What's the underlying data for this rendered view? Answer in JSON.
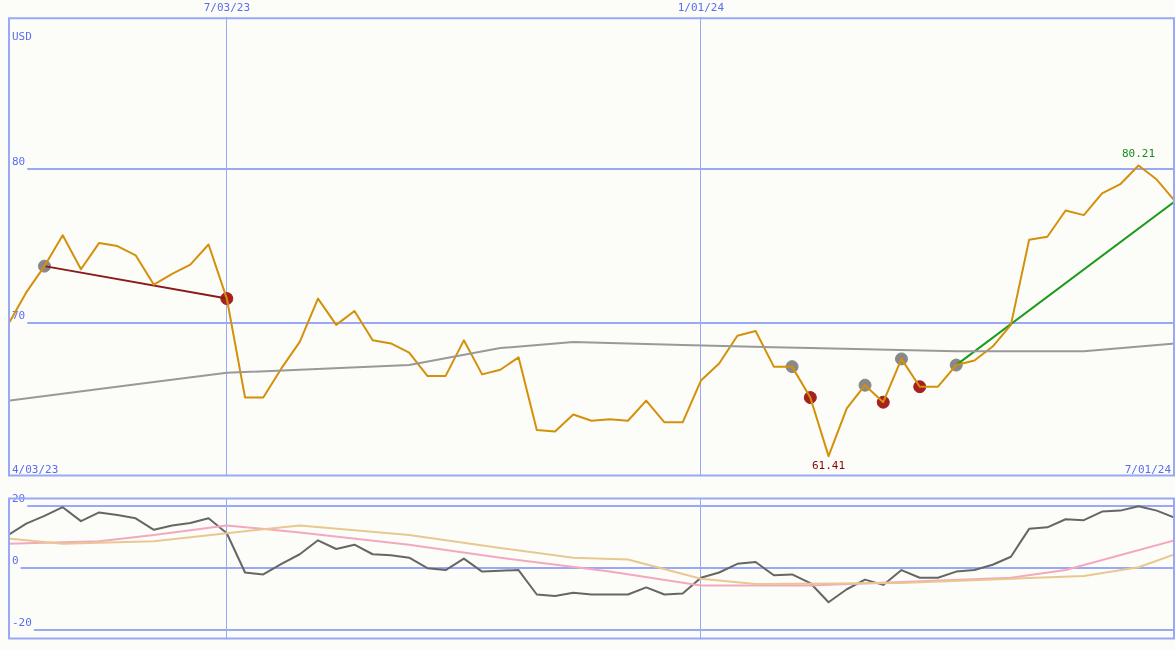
{
  "chart_data": [
    {
      "type": "line",
      "ylabel": "USD",
      "marker": "none",
      "grid": true,
      "x": [
        "2023-04-10",
        "2023-04-17",
        "2023-04-24",
        "2023-05-01",
        "2023-05-08",
        "2023-05-15",
        "2023-05-22",
        "2023-05-29",
        "2023-06-05",
        "2023-06-12",
        "2023-06-19",
        "2023-06-26",
        "2023-07-03",
        "2023-07-10",
        "2023-07-17",
        "2023-07-24",
        "2023-07-31",
        "2023-08-07",
        "2023-08-14",
        "2023-08-21",
        "2023-08-28",
        "2023-09-04",
        "2023-09-11",
        "2023-09-18",
        "2023-09-25",
        "2023-10-02",
        "2023-10-09",
        "2023-10-16",
        "2023-10-23",
        "2023-10-30",
        "2023-11-06",
        "2023-11-13",
        "2023-11-20",
        "2023-11-27",
        "2023-12-04",
        "2023-12-11",
        "2023-12-18",
        "2023-12-25",
        "2024-01-01",
        "2024-01-08",
        "2024-01-15",
        "2024-01-22",
        "2024-01-29",
        "2024-02-05",
        "2024-02-12",
        "2024-02-19",
        "2024-02-26",
        "2024-03-04",
        "2024-03-11",
        "2024-03-18",
        "2024-03-25",
        "2024-04-01",
        "2024-04-08",
        "2024-04-15",
        "2024-04-22",
        "2024-04-29",
        "2024-05-06",
        "2024-05-13",
        "2024-05-20",
        "2024-05-27",
        "2024-06-03",
        "2024-06-10",
        "2024-06-17",
        "2024-06-24",
        "2024-07-01"
      ],
      "xlim": [
        "2023-04-10",
        "2024-07-01"
      ],
      "xticks": [
        {
          "value": "2023-07-03",
          "label": "7/03/23"
        },
        {
          "value": "2024-01-01",
          "label": "1/01/24"
        }
      ],
      "ylim": [
        60.1,
        89.8
      ],
      "yticks": [
        70,
        80
      ],
      "series": [
        {
          "type": "line",
          "color": "#999999",
          "x": [
            "2023-04-10",
            "2023-06-05",
            "2023-07-03",
            "2023-09-11",
            "2023-10-16",
            "2023-11-13",
            "2023-12-25",
            "2024-02-12",
            "2024-04-08",
            "2024-05-27",
            "2024-07-01"
          ],
          "values": [
            65.0,
            66.2,
            66.8,
            67.3,
            68.4,
            68.8,
            68.6,
            68.4,
            68.2,
            68.2,
            68.7
          ]
        },
        {
          "type": "line",
          "color": "#d4900a",
          "values": [
            69.9,
            72.0,
            73.7,
            75.7,
            73.5,
            75.2,
            75.0,
            74.4,
            72.5,
            73.2,
            73.8,
            75.1,
            71.6,
            65.2,
            65.2,
            67.1,
            68.8,
            71.6,
            69.9,
            70.8,
            68.9,
            68.7,
            68.1,
            66.6,
            66.6,
            68.9,
            66.7,
            67.0,
            67.8,
            63.1,
            63.0,
            64.1,
            63.7,
            63.8,
            63.7,
            65.0,
            63.6,
            63.6,
            66.3,
            67.4,
            69.2,
            69.5,
            67.2,
            67.2,
            65.2,
            61.41,
            64.5,
            66.0,
            64.9,
            67.7,
            65.9,
            65.9,
            67.3,
            67.6,
            68.5,
            69.9,
            75.4,
            75.6,
            77.3,
            77.0,
            78.4,
            79.0,
            80.21,
            79.3,
            77.9
          ]
        },
        {
          "type": "line",
          "color": "#8b1a1a",
          "x": [
            "2023-04-24",
            "2023-07-03"
          ],
          "values": [
            73.7,
            71.6
          ]
        },
        {
          "type": "line",
          "color": "#1a9a1a",
          "x": [
            "2024-04-08",
            "2024-07-01"
          ],
          "values": [
            67.3,
            77.9
          ]
        },
        {
          "type": "scatter",
          "marker": "circle",
          "color": "#888888",
          "x": [
            "2023-04-24",
            "2024-02-05",
            "2024-03-04",
            "2024-03-18",
            "2024-04-08"
          ],
          "values": [
            73.7,
            67.2,
            66.0,
            67.7,
            67.3
          ]
        },
        {
          "type": "scatter",
          "marker": "circle",
          "color": "#a52020",
          "x": [
            "2023-07-03",
            "2024-02-12",
            "2024-03-11",
            "2024-03-25"
          ],
          "values": [
            71.6,
            65.2,
            64.9,
            65.9
          ]
        }
      ],
      "annotations": [
        "4/03/23",
        "7/01/24",
        {
          "text": "61.41",
          "x": "2024-02-19",
          "y": 61.41
        },
        {
          "text": "80.21",
          "x": "2024-06-17",
          "y": 80.21
        }
      ]
    },
    {
      "type": "line",
      "marker": "none",
      "grid": true,
      "tick_labels": "y",
      "xlim": [
        "2023-04-10",
        "2024-07-01"
      ],
      "xticks": [
        {
          "value": "2023-07-03",
          "label": null
        },
        {
          "value": "2024-01-01",
          "label": null
        }
      ],
      "ylim": [
        -23,
        22.8
      ],
      "yticks": [
        -20,
        0,
        20
      ],
      "series": [
        {
          "type": "line",
          "color": "#e8c890",
          "x": [
            "2023-04-10",
            "2023-05-01",
            "2023-06-05",
            "2023-07-03",
            "2023-07-31",
            "2023-09-11",
            "2023-10-16",
            "2023-11-13",
            "2023-12-04",
            "2024-01-01",
            "2024-01-22",
            "2024-03-18",
            "2024-05-27",
            "2024-06-17",
            "2024-07-01"
          ],
          "values": [
            9.6,
            7.9,
            8.7,
            11.3,
            13.8,
            10.7,
            6.5,
            3.4,
            2.8,
            -3.4,
            -5.1,
            -4.8,
            -2.5,
            0.3,
            4.5
          ]
        },
        {
          "type": "line",
          "color": "#f4a8c0",
          "x": [
            "2023-04-10",
            "2023-05-15",
            "2023-06-05",
            "2023-07-03",
            "2023-07-31",
            "2023-09-11",
            "2023-10-16",
            "2023-11-27",
            "2024-01-01",
            "2024-02-12",
            "2024-03-18",
            "2024-04-29",
            "2024-05-20",
            "2024-07-01"
          ],
          "values": [
            7.9,
            8.7,
            10.7,
            13.8,
            11.5,
            7.6,
            3.4,
            -1.1,
            -5.6,
            -5.6,
            -4.5,
            -3.1,
            -0.6,
            9.0
          ]
        },
        {
          "type": "line",
          "color": "#666666",
          "x": [
            "2023-04-10",
            "2023-04-17",
            "2023-04-24",
            "2023-05-01",
            "2023-05-08",
            "2023-05-15",
            "2023-05-22",
            "2023-05-29",
            "2023-06-05",
            "2023-06-12",
            "2023-06-19",
            "2023-06-26",
            "2023-07-03",
            "2023-07-10",
            "2023-07-17",
            "2023-07-24",
            "2023-07-31",
            "2023-08-07",
            "2023-08-14",
            "2023-08-21",
            "2023-08-28",
            "2023-09-04",
            "2023-09-11",
            "2023-09-18",
            "2023-09-25",
            "2023-10-02",
            "2023-10-09",
            "2023-10-16",
            "2023-10-23",
            "2023-10-30",
            "2023-11-06",
            "2023-11-13",
            "2023-11-20",
            "2023-11-27",
            "2023-12-04",
            "2023-12-11",
            "2023-12-18",
            "2023-12-25",
            "2024-01-01",
            "2024-01-08",
            "2024-01-15",
            "2024-01-22",
            "2024-01-29",
            "2024-02-05",
            "2024-02-12",
            "2024-02-19",
            "2024-02-26",
            "2024-03-04",
            "2024-03-11",
            "2024-03-18",
            "2024-03-25",
            "2024-04-01",
            "2024-04-08",
            "2024-04-15",
            "2024-04-22",
            "2024-04-29",
            "2024-05-06",
            "2024-05-13",
            "2024-05-20",
            "2024-05-27",
            "2024-06-03",
            "2024-06-10",
            "2024-06-17",
            "2024-06-24",
            "2024-07-01"
          ],
          "values": [
            10.7,
            14.4,
            16.9,
            19.7,
            15.2,
            18.0,
            17.2,
            16.1,
            12.4,
            13.8,
            14.6,
            16.1,
            11.3,
            -1.4,
            -2.0,
            1.4,
            4.5,
            9.0,
            6.2,
            7.6,
            4.5,
            4.2,
            3.4,
            0,
            -0.6,
            3.1,
            -1.1,
            -0.8,
            -0.6,
            -8.5,
            -9.0,
            -7.9,
            -8.5,
            -8.5,
            -8.5,
            -6.2,
            -8.5,
            -8.2,
            -3.1,
            -1.4,
            1.4,
            2.0,
            -2.3,
            -2.0,
            -4.8,
            -11.0,
            -6.8,
            -3.7,
            -5.4,
            -0.6,
            -3.1,
            -3.1,
            -1.1,
            -0.6,
            1.1,
            3.7,
            12.7,
            13.2,
            15.8,
            15.5,
            18.3,
            18.6,
            20.0,
            18.6,
            16.3
          ]
        }
      ]
    }
  ]
}
